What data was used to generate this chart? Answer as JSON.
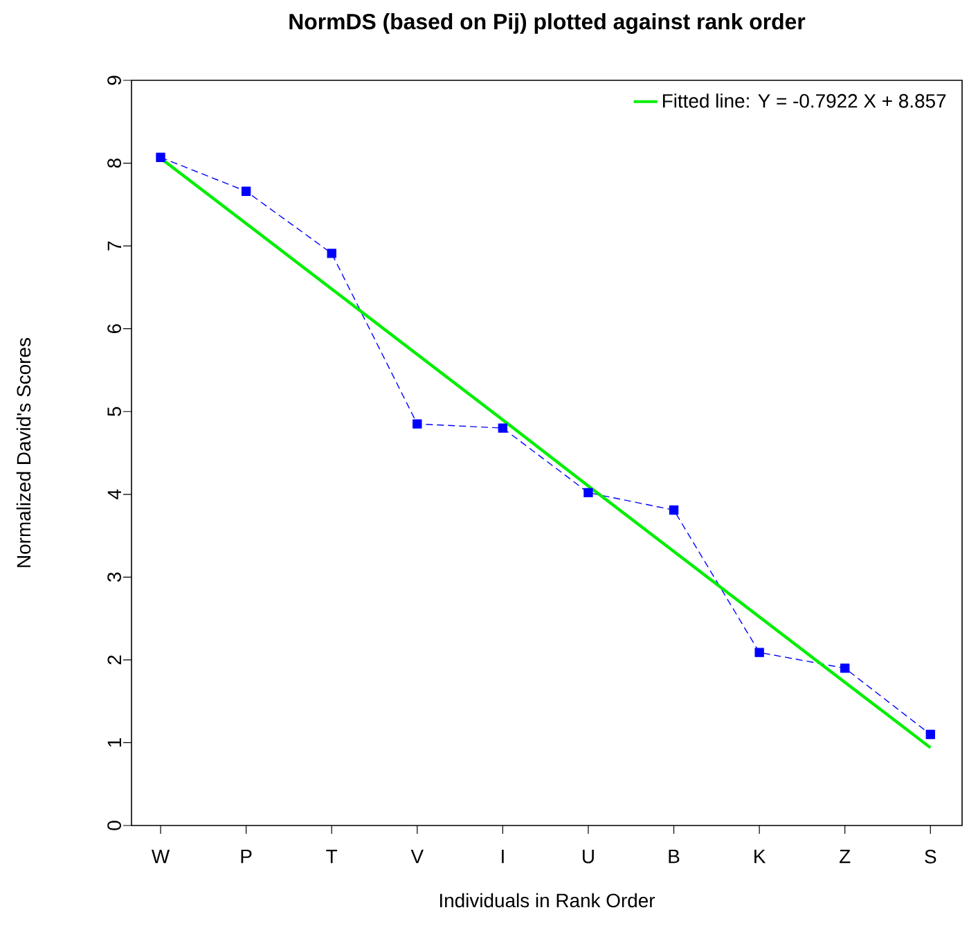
{
  "chart_data": {
    "type": "line",
    "title": "NormDS (based on Pij) plotted against rank order",
    "xlabel": "Individuals in Rank Order",
    "ylabel": "Normalized David's Scores",
    "categories": [
      "W",
      "P",
      "T",
      "V",
      "I",
      "U",
      "B",
      "K",
      "Z",
      "S"
    ],
    "ylim": [
      0,
      9
    ],
    "yticks": [
      0,
      1,
      2,
      3,
      4,
      5,
      6,
      7,
      8,
      9
    ],
    "series": [
      {
        "color": "#0000ff",
        "marker": "square",
        "line_style": "dashed",
        "values": [
          8.07,
          7.66,
          6.91,
          4.85,
          4.8,
          4.02,
          3.81,
          2.09,
          1.9,
          1.1
        ]
      },
      {
        "name": "Fitted line:  Y =  -0.7922 X + 8.857",
        "color": "#00ee00",
        "marker": "none",
        "line_style": "solid",
        "values": [
          8.06,
          7.27,
          6.48,
          5.69,
          4.9,
          4.1,
          3.31,
          2.52,
          1.73,
          0.94
        ]
      }
    ],
    "legend": "top right"
  }
}
